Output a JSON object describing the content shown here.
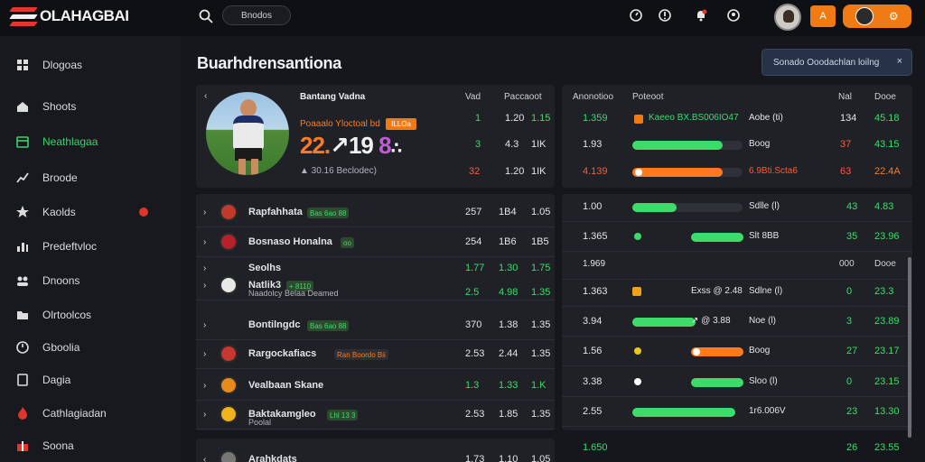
{
  "app": {
    "logo_text": "OLAHAGBAI",
    "search_pill": "Bnodos"
  },
  "topbar": {
    "orange_btn_glyph": "A",
    "user_btn_gear": "⚙"
  },
  "sidebar": {
    "items": [
      {
        "label": "Dlogoas",
        "icon": "grid-icon"
      },
      {
        "label": "Shoots",
        "icon": "home-icon"
      },
      {
        "label": "Neathlagaa",
        "icon": "calendar-icon",
        "active": true
      },
      {
        "label": "Broode",
        "icon": "trend-icon"
      },
      {
        "label": "Kaolds",
        "icon": "star-icon",
        "badge": true
      },
      {
        "label": "Predeftvloc",
        "icon": "chart-icon"
      },
      {
        "label": "Dnoons",
        "icon": "people-icon"
      },
      {
        "label": "Olrtoolcos",
        "icon": "folder-icon"
      },
      {
        "label": "Gboolia",
        "icon": "clock-icon"
      },
      {
        "label": "Dagia",
        "icon": "doc-icon"
      },
      {
        "label": "Cathlagiadan",
        "icon": "fire-icon"
      },
      {
        "label": "Soona",
        "icon": "gift-icon"
      }
    ]
  },
  "main": {
    "title": "Buarhdrensantiona",
    "notice": {
      "text": "Sonado Ooodachlan loilng",
      "close": "×"
    }
  },
  "hero": {
    "headers": {
      "name": "Bantang Vadna",
      "col2": "Vad",
      "col3": "Paccaoot"
    },
    "subtitle": "Poaaalo Yloctoal bd",
    "tag": "ILLOa",
    "score": {
      "a": "22.",
      "b": "↗",
      "c": "19",
      "d": "8",
      "e": "∴"
    },
    "footer": "▲ 30.16  Beclodec)",
    "stats": [
      {
        "v": "1",
        "a": "1.20",
        "b": "1.15"
      },
      {
        "v": "3",
        "a": "4.3",
        "b": "1IK"
      },
      {
        "v": "32",
        "a": "1.20",
        "b": "1IK"
      }
    ]
  },
  "odds_panel": {
    "headers": {
      "c1": "Anonotioo",
      "c2": "Poteoot",
      "c3": "Nal",
      "c4": "Dooe"
    },
    "rows": [
      {
        "o": "1.359",
        "label": "Kaeeo BX.BS006IO47",
        "tail": "Aobe (ti)",
        "n": "134",
        "d": "45.18",
        "bar": null
      },
      {
        "o": "1.93",
        "label": "",
        "tail": "Boog",
        "n": "37",
        "d": "43.15",
        "bar": 0.82
      },
      {
        "o": "4.139",
        "label": "",
        "tail": "6.9Bti.Scta6",
        "n": "63",
        "d": "22.4A",
        "bar": 0.82
      }
    ]
  },
  "matches": [
    {
      "name": "Rapfahhata",
      "chip": "Bas 6ao 88",
      "c1": "257",
      "c2": "1B4",
      "c3": "1.05",
      "badge": "#c1392b"
    },
    {
      "name": "Bosnaso  Honalna",
      "chip": "oo",
      "c1": "254",
      "c2": "1B6",
      "c3": "1B5",
      "badge": "#b7222a"
    },
    {
      "name": "Seolhs",
      "chip": "",
      "c1": "1.77",
      "c2": "1.30",
      "c3": "1.75",
      "badge": "#e3a81d"
    },
    {
      "name": "Natlik3",
      "chip": "+ 8110",
      "sub": "Naadolcy  Belaa Deamed",
      "c1": "2.5",
      "c2": "4.98",
      "c3": "1.35",
      "badge": "#e8e8e8"
    },
    {
      "name": "Bontilngdc",
      "chip": "Bas 6ao 88",
      "c1": "370",
      "c2": "1.38",
      "c3": "1.35",
      "badge": "#cccccc"
    },
    {
      "name": "Rargockafiacs",
      "chip": "Ran  Boordo Bii",
      "c1": "2.53",
      "c2": "2.44",
      "c3": "1.35",
      "badge": "#c7372f"
    },
    {
      "name": "Vealbaan  Skane",
      "chip": "",
      "c1": "1.3",
      "c2": "1.33",
      "c3": "1.K",
      "badge": "#e88b1d"
    },
    {
      "name": "Baktakamgleo",
      "chip": "Lhl  13  3",
      "sub": "Poolal",
      "c1": "2.53",
      "c2": "1.85",
      "c3": "1.35",
      "badge": "#f0b21d"
    },
    {
      "name": "Arahkdats",
      "chip": "",
      "c1": "1.73",
      "c2": "1.10",
      "c3": "1.05",
      "badge": "#777777"
    }
  ],
  "odds_rows": [
    {
      "o": "1.00",
      "tail": "Sdlle (l)",
      "n": "43",
      "d": "4.83",
      "bar": 0.6,
      "color": "#3ddc6a",
      "marker": "none"
    },
    {
      "o": "1.365",
      "tail": "Slt 8BB",
      "n": "35",
      "d": "23.96",
      "bar": 0.45,
      "color": "#3ddc6a",
      "marker": "dot-green"
    },
    {
      "o": "1.969",
      "tail": "",
      "n": "000",
      "d": "Dooe",
      "bar": null,
      "color": "",
      "marker": "none",
      "header": true
    },
    {
      "o": "1.363",
      "tail": "Sdlne (l)",
      "mid": "Exss  @ 2.48",
      "n": "0",
      "d": "23.3",
      "bar": null,
      "color": "",
      "marker": "sq-orange"
    },
    {
      "o": "3.94",
      "tail": "Noe (l)",
      "mid": "↗  @ 3.88",
      "n": "3",
      "d": "23.89",
      "bar": 0.56,
      "color": "#3ddc6a",
      "marker": "none"
    },
    {
      "o": "1.56",
      "tail": "Boog",
      "n": "27",
      "d": "23.17",
      "bar": 0.45,
      "color": "#ff7a1f",
      "marker": "dot-yellow"
    },
    {
      "o": "3.38",
      "tail": "Sloo (l)",
      "n": "0",
      "d": "23.15",
      "bar": 0.45,
      "color": "#3ddc6a",
      "marker": "dot-white"
    },
    {
      "o": "2.55",
      "tail": "1r6.006V",
      "n": "23",
      "d": "13.30",
      "bar": 0.88,
      "color": "#3ddc6a",
      "marker": "none"
    },
    {
      "o": "1.650",
      "tail": "",
      "n": "26",
      "d": "23.55",
      "bar": null,
      "color": "",
      "marker": "none"
    }
  ],
  "colors": {
    "accent": "#3ddc6a",
    "orange": "#f07a14",
    "bg": "#15171c",
    "panel": "#1f2127"
  }
}
